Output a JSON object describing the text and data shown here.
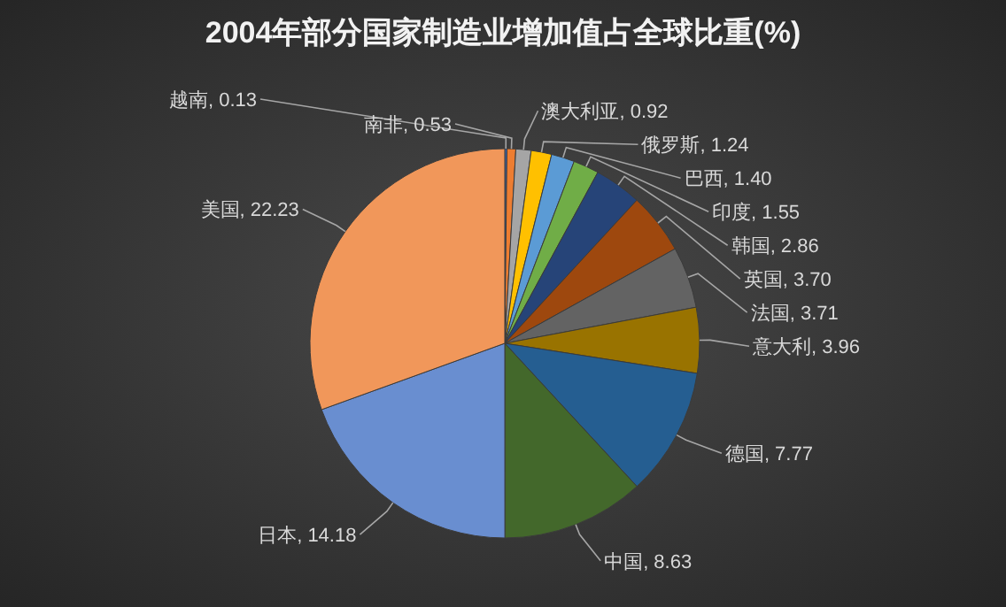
{
  "chart_data": {
    "type": "pie",
    "title": "2004年部分国家制造业增加值占全球比重(%)",
    "categories": [
      "越南",
      "南非",
      "澳大利亚",
      "俄罗斯",
      "巴西",
      "印度",
      "韩国",
      "英国",
      "法国",
      "意大利",
      "德国",
      "中国",
      "日本",
      "美国"
    ],
    "values": [
      0.13,
      0.53,
      0.92,
      1.24,
      1.4,
      1.55,
      2.86,
      3.7,
      3.71,
      3.96,
      7.77,
      8.63,
      14.18,
      22.23
    ],
    "colors": [
      "#4472c4",
      "#ed7d31",
      "#a5a5a5",
      "#ffc000",
      "#5b9bd5",
      "#70ad47",
      "#264478",
      "#9e480e",
      "#636363",
      "#997300",
      "#255e91",
      "#43682b",
      "#698ed0",
      "#f1975a"
    ],
    "value_labels": [
      ", 0.13",
      ", 0.53",
      ", 0.92",
      ", 1.24",
      ", 1.40",
      ", 1.55",
      ", 2.86",
      ", 3.70",
      ", 3.71",
      ", 3.96",
      ", 7.77",
      ", 8.63",
      ", 14.18",
      ", 22.23"
    ],
    "legend": false
  }
}
